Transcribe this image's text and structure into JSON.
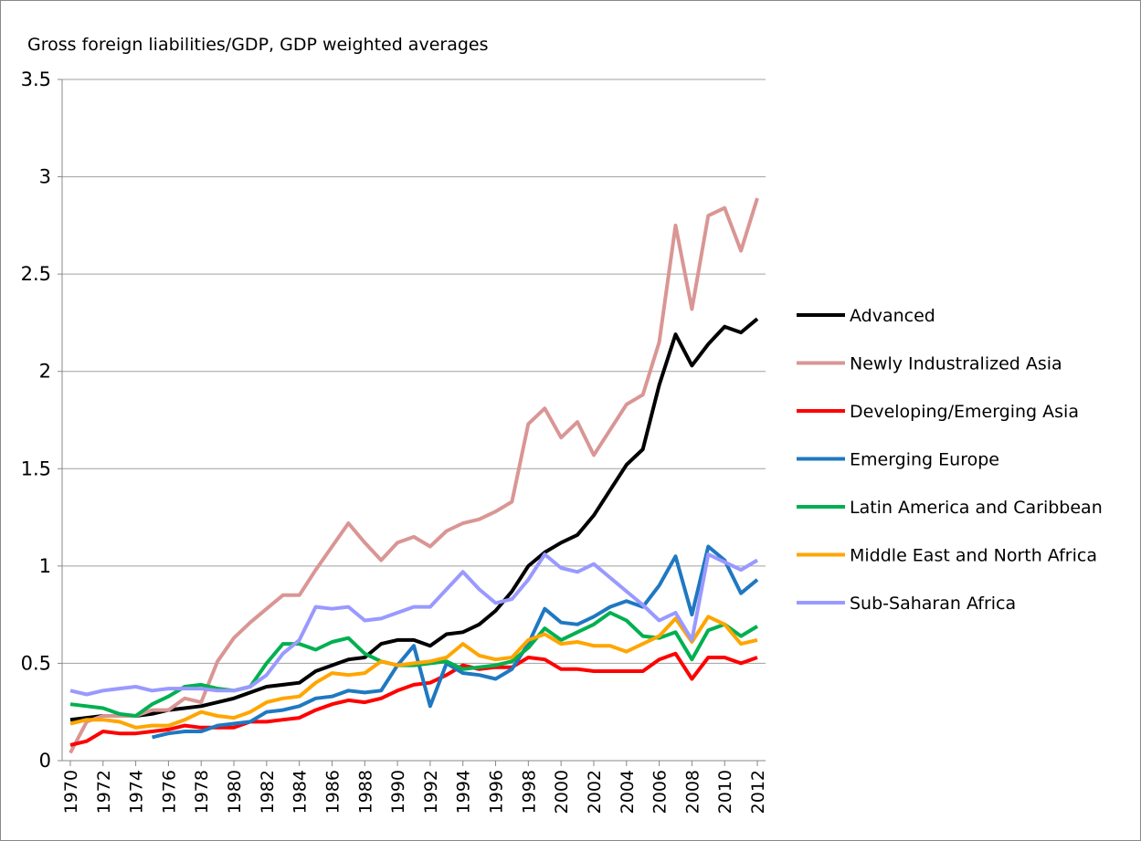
{
  "chart_data": {
    "type": "line",
    "title": "Gross foreign liabilities/GDP, GDP weighted averages",
    "x": [
      1970,
      1971,
      1972,
      1973,
      1974,
      1975,
      1976,
      1977,
      1978,
      1979,
      1980,
      1981,
      1982,
      1983,
      1984,
      1985,
      1986,
      1987,
      1988,
      1989,
      1990,
      1991,
      1992,
      1993,
      1994,
      1995,
      1996,
      1997,
      1998,
      1999,
      2000,
      2001,
      2002,
      2003,
      2004,
      2005,
      2006,
      2007,
      2008,
      2009,
      2010,
      2011,
      2012
    ],
    "xlim": [
      1969.5,
      2012.5
    ],
    "xticks": [
      1970,
      1972,
      1974,
      1976,
      1978,
      1980,
      1982,
      1984,
      1986,
      1988,
      1990,
      1992,
      1994,
      1996,
      1998,
      2000,
      2002,
      2004,
      2006,
      2008,
      2010,
      2012
    ],
    "ylim": [
      0,
      3.5
    ],
    "yticks": [
      0,
      0.5,
      1,
      1.5,
      2,
      2.5,
      3,
      3.5
    ],
    "grid": true,
    "legend": "right",
    "series": [
      {
        "name": "Advanced",
        "color": "#000000",
        "values": [
          0.21,
          0.22,
          0.23,
          0.23,
          0.23,
          0.24,
          0.26,
          0.27,
          0.28,
          0.3,
          0.32,
          0.35,
          0.38,
          0.39,
          0.4,
          0.46,
          0.49,
          0.52,
          0.53,
          0.6,
          0.62,
          0.62,
          0.59,
          0.65,
          0.66,
          0.7,
          0.77,
          0.87,
          1.0,
          1.07,
          1.12,
          1.16,
          1.26,
          1.39,
          1.52,
          1.6,
          1.93,
          2.19,
          2.03,
          2.14,
          2.23,
          2.2,
          2.27
        ]
      },
      {
        "name": "Newly Industralized Asia",
        "color": "#d99694",
        "values": [
          0.04,
          0.2,
          0.23,
          0.23,
          0.23,
          0.26,
          0.26,
          0.32,
          0.3,
          0.51,
          0.63,
          0.71,
          0.78,
          0.85,
          0.85,
          0.98,
          1.1,
          1.22,
          1.12,
          1.03,
          1.12,
          1.15,
          1.1,
          1.18,
          1.22,
          1.24,
          1.28,
          1.33,
          1.73,
          1.81,
          1.66,
          1.74,
          1.57,
          1.7,
          1.83,
          1.88,
          2.15,
          2.75,
          2.32,
          2.8,
          2.84,
          2.62,
          2.89
        ]
      },
      {
        "name": "Developing/Emerging Asia",
        "color": "#ff0000",
        "values": [
          0.08,
          0.1,
          0.15,
          0.14,
          0.14,
          0.15,
          0.16,
          0.18,
          0.17,
          0.17,
          0.17,
          0.2,
          0.2,
          0.21,
          0.22,
          0.26,
          0.29,
          0.31,
          0.3,
          0.32,
          0.36,
          0.39,
          0.4,
          0.44,
          0.49,
          0.47,
          0.48,
          0.48,
          0.53,
          0.52,
          0.47,
          0.47,
          0.46,
          0.46,
          0.46,
          0.46,
          0.52,
          0.55,
          0.42,
          0.53,
          0.53,
          0.5,
          0.53
        ]
      },
      {
        "name": "Emerging Europe",
        "color": "#1f78c1",
        "values": [
          null,
          null,
          null,
          null,
          null,
          0.12,
          0.14,
          0.15,
          0.15,
          0.18,
          0.19,
          0.2,
          0.25,
          0.26,
          0.28,
          0.32,
          0.33,
          0.36,
          0.35,
          0.36,
          0.49,
          0.59,
          0.28,
          0.5,
          0.45,
          0.44,
          0.42,
          0.47,
          0.6,
          0.78,
          0.71,
          0.7,
          0.74,
          0.79,
          0.82,
          0.79,
          0.9,
          1.05,
          0.75,
          1.1,
          1.03,
          0.86,
          0.93
        ]
      },
      {
        "name": "Latin America and Caribbean",
        "color": "#00b050",
        "values": [
          0.29,
          0.28,
          0.27,
          0.24,
          0.23,
          0.29,
          0.33,
          0.38,
          0.39,
          0.37,
          0.36,
          0.38,
          0.5,
          0.6,
          0.6,
          0.57,
          0.61,
          0.63,
          0.55,
          0.51,
          0.49,
          0.49,
          0.5,
          0.51,
          0.47,
          0.48,
          0.49,
          0.51,
          0.58,
          0.68,
          0.62,
          0.66,
          0.7,
          0.76,
          0.72,
          0.64,
          0.63,
          0.66,
          0.52,
          0.67,
          0.7,
          0.64,
          0.69
        ]
      },
      {
        "name": "Middle East and North Africa",
        "color": "#ffa500",
        "values": [
          0.19,
          0.21,
          0.21,
          0.2,
          0.17,
          0.18,
          0.18,
          0.21,
          0.25,
          0.23,
          0.22,
          0.25,
          0.3,
          0.32,
          0.33,
          0.4,
          0.45,
          0.44,
          0.45,
          0.51,
          0.49,
          0.5,
          0.51,
          0.53,
          0.6,
          0.54,
          0.52,
          0.53,
          0.62,
          0.65,
          0.6,
          0.61,
          0.59,
          0.59,
          0.56,
          0.6,
          0.64,
          0.73,
          0.61,
          0.74,
          0.7,
          0.6,
          0.62
        ]
      },
      {
        "name": "Sub-Saharan Africa",
        "color": "#9999ff",
        "values": [
          0.36,
          0.34,
          0.36,
          0.37,
          0.38,
          0.36,
          0.37,
          0.37,
          0.37,
          0.36,
          0.36,
          0.38,
          0.44,
          0.55,
          0.62,
          0.79,
          0.78,
          0.79,
          0.72,
          0.73,
          0.76,
          0.79,
          0.79,
          0.88,
          0.97,
          0.88,
          0.81,
          0.83,
          0.93,
          1.06,
          0.99,
          0.97,
          1.01,
          0.94,
          0.87,
          0.8,
          0.72,
          0.76,
          0.62,
          1.06,
          1.02,
          0.98,
          1.03
        ]
      }
    ]
  }
}
